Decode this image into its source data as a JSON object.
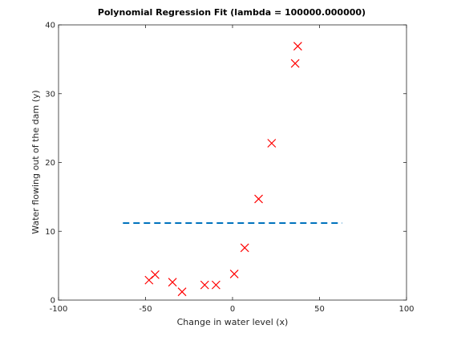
{
  "chart_data": {
    "type": "scatter",
    "title": "Polynomial Regression Fit (lambda = 100000.000000)",
    "xlabel": "Change in water level (x)",
    "ylabel": "Water flowing out of the dam (y)",
    "xlim": [
      -100,
      100
    ],
    "ylim": [
      0,
      40
    ],
    "xticks": [
      "-100",
      "-50",
      "0",
      "50",
      "100"
    ],
    "yticks": [
      "0",
      "10",
      "20",
      "30",
      "40"
    ],
    "grid": false,
    "series": [
      {
        "marker": "x",
        "color": "#ff0000",
        "x": [
          -48,
          -44.5,
          -34.5,
          -29,
          -16,
          -9.5,
          1,
          7,
          15,
          22.5,
          36,
          37.5
        ],
        "y": [
          2.9,
          3.7,
          2.6,
          1.2,
          2.2,
          2.2,
          3.8,
          7.6,
          14.7,
          22.8,
          34.4,
          36.9
        ]
      },
      {
        "style": "dashed",
        "color": "#0072bd",
        "x": [
          -63,
          63
        ],
        "y": [
          11.2,
          11.2
        ]
      }
    ]
  }
}
